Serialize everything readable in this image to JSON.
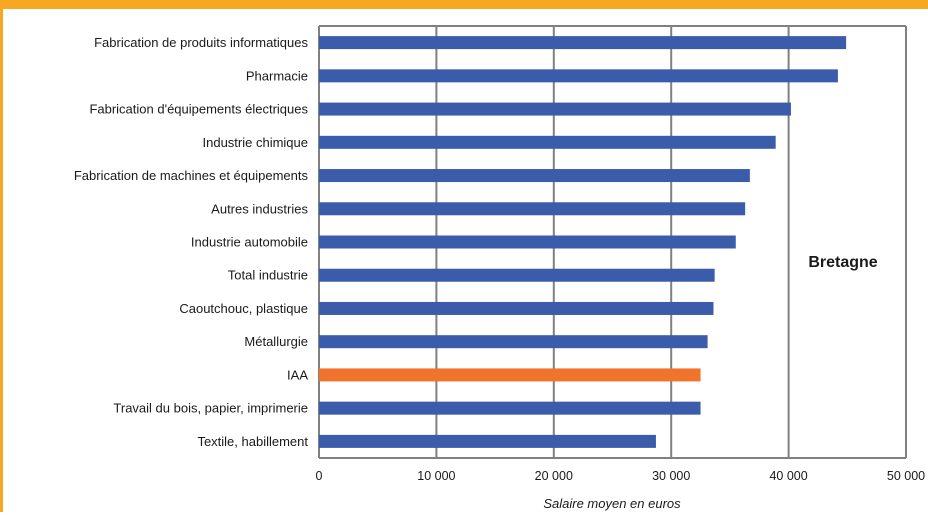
{
  "chart_data": {
    "type": "bar",
    "orientation": "horizontal",
    "categories": [
      "Fabrication de produits informatiques",
      "Pharmacie",
      "Fabrication d'équipements électriques",
      "Industrie chimique",
      "Fabrication de machines et équipements",
      "Autres industries",
      "Industrie automobile",
      "Total industrie",
      "Caoutchouc, plastique",
      "Métallurgie",
      "IAA",
      "Travail du bois, papier, imprimerie",
      "Textile, habillement"
    ],
    "values": [
      44900,
      44200,
      40200,
      38900,
      36700,
      36300,
      35500,
      33700,
      33600,
      33100,
      32500,
      32500,
      28700
    ],
    "highlight_category": "IAA",
    "colors": {
      "bar": "#3b5bab",
      "highlight": "#f0732e",
      "grid": "#808080",
      "frame": "#f7a823"
    },
    "xlabel": "Salaire moyen en euros",
    "ylabel": "",
    "xlim": [
      0,
      50000
    ],
    "xticks": [
      0,
      10000,
      20000,
      30000,
      40000,
      50000
    ],
    "xtick_labels": [
      "0",
      "10 000",
      "20 000",
      "30 000",
      "40 000",
      "50 000"
    ],
    "grid": true,
    "annotation": "Bretagne"
  }
}
